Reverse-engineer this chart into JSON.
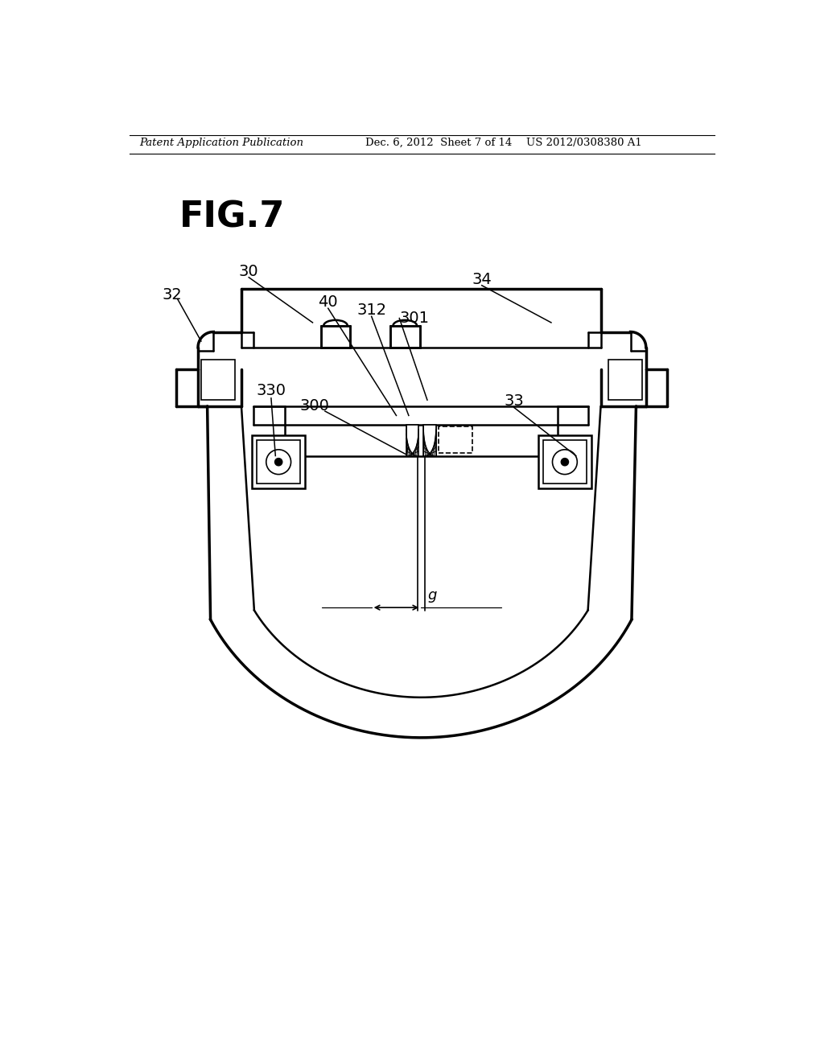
{
  "header_left": "Patent Application Publication",
  "header_center": "Dec. 6, 2012  Sheet 7 of 14",
  "header_right": "US 2012/0308380 A1",
  "fig_label": "FIG.7",
  "bg_color": "#ffffff",
  "line_color": "#000000",
  "lw_thick": 2.5,
  "lw_med": 1.8,
  "lw_thin": 1.2,
  "label_fs": 14
}
